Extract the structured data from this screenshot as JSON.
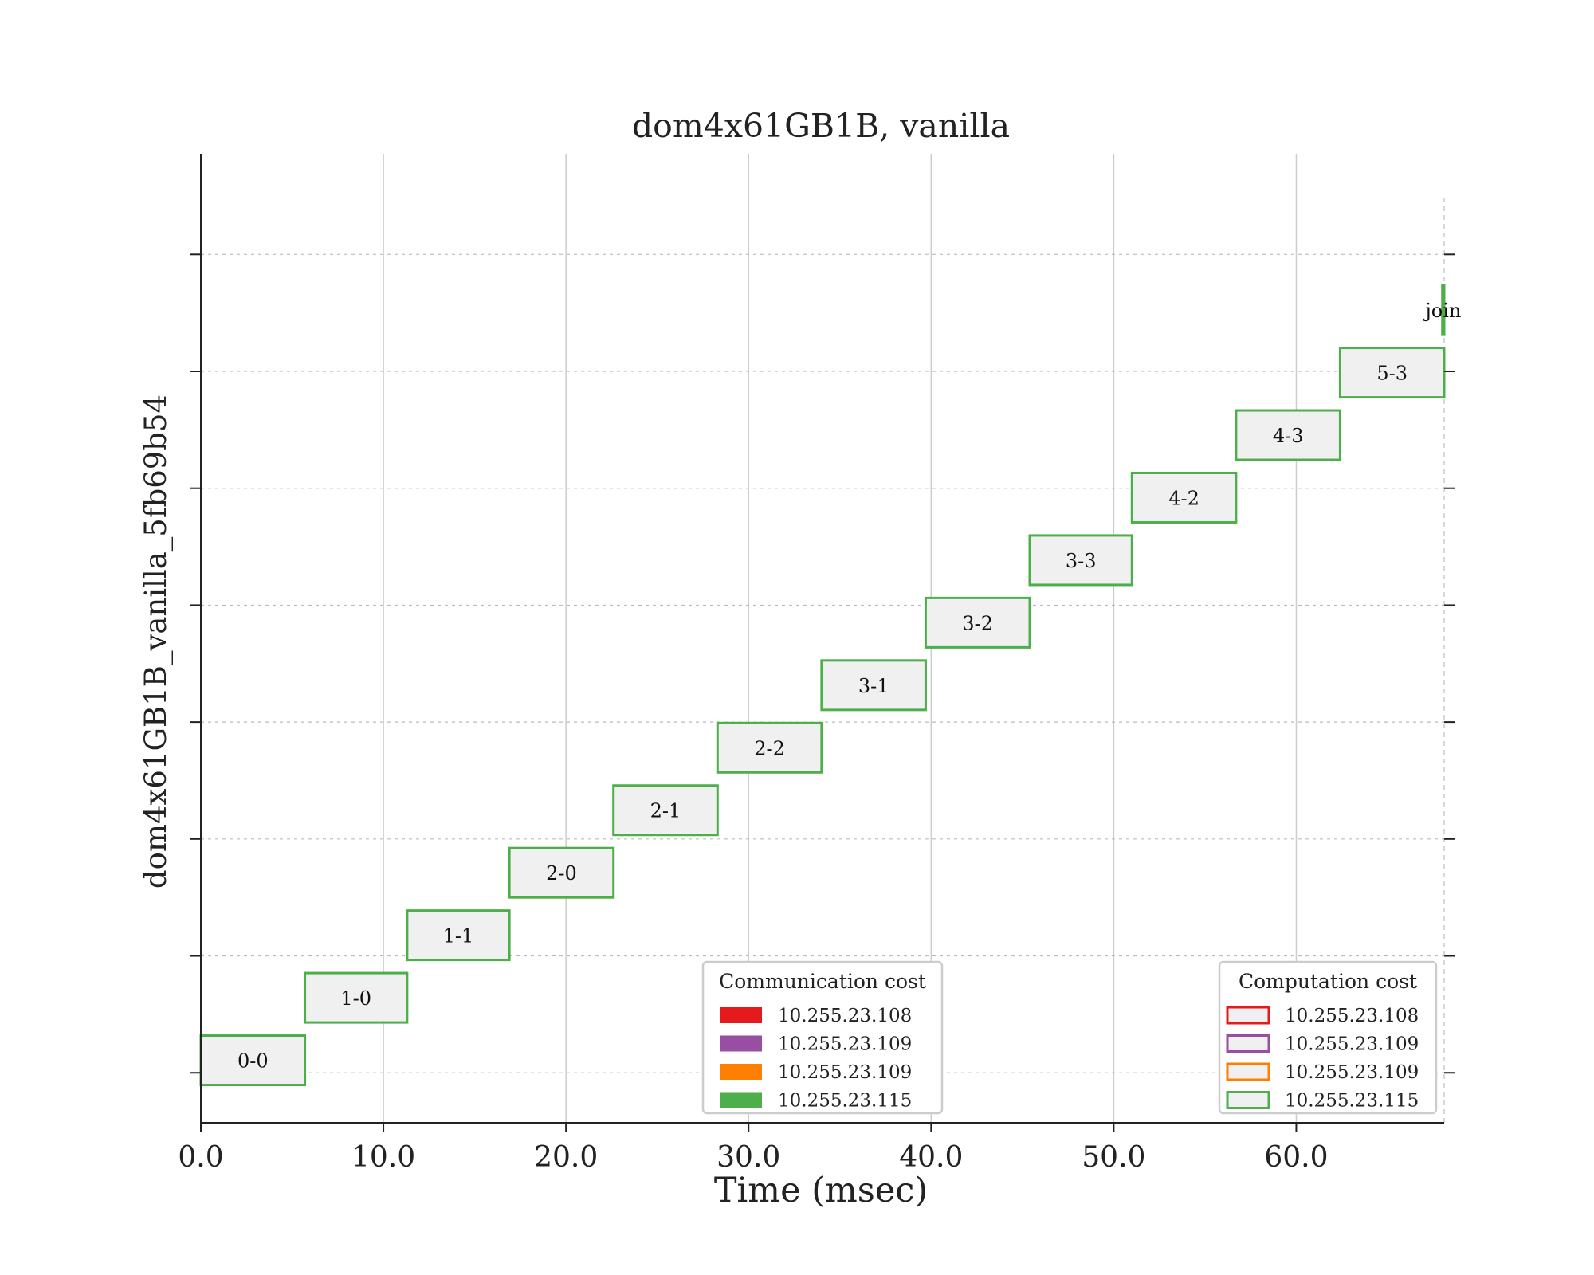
{
  "chart_data": {
    "type": "gantt",
    "title": "dom4x61GB1B, vanilla",
    "xlabel": "Time (msec)",
    "ylabel": "dom4x61GB1B_vanilla_5fb69b54",
    "xlim": [
      0,
      68.1
    ],
    "x_ticks": [
      0,
      10,
      20,
      30,
      40,
      50,
      60
    ],
    "x_tick_labels": [
      "0.0",
      "10.0",
      "20.0",
      "30.0",
      "40.0",
      "50.0",
      "60.0"
    ],
    "ylim": [
      0,
      15.5
    ],
    "grid": "vertical solid at x ticks; horizontal dashed at y ticks",
    "tasks": [
      {
        "label": "0-0",
        "start": 0.0,
        "end": 5.7,
        "level": 1,
        "host": "10.255.23.115"
      },
      {
        "label": "1-0",
        "start": 5.7,
        "end": 11.3,
        "level": 2,
        "host": "10.255.23.115"
      },
      {
        "label": "1-1",
        "start": 11.3,
        "end": 16.9,
        "level": 3,
        "host": "10.255.23.115"
      },
      {
        "label": "2-0",
        "start": 16.9,
        "end": 22.6,
        "level": 4,
        "host": "10.255.23.115"
      },
      {
        "label": "2-1",
        "start": 22.6,
        "end": 28.3,
        "level": 5,
        "host": "10.255.23.115"
      },
      {
        "label": "2-2",
        "start": 28.3,
        "end": 34.0,
        "level": 6,
        "host": "10.255.23.115"
      },
      {
        "label": "3-1",
        "start": 34.0,
        "end": 39.7,
        "level": 7,
        "host": "10.255.23.115"
      },
      {
        "label": "3-2",
        "start": 39.7,
        "end": 45.4,
        "level": 8,
        "host": "10.255.23.115"
      },
      {
        "label": "3-3",
        "start": 45.4,
        "end": 51.0,
        "level": 9,
        "host": "10.255.23.115"
      },
      {
        "label": "4-2",
        "start": 51.0,
        "end": 56.7,
        "level": 10,
        "host": "10.255.23.115"
      },
      {
        "label": "4-3",
        "start": 56.7,
        "end": 62.4,
        "level": 11,
        "host": "10.255.23.115"
      },
      {
        "label": "5-3",
        "start": 62.4,
        "end": 68.1,
        "level": 12,
        "host": "10.255.23.115"
      },
      {
        "label": "join",
        "start": 68.0,
        "end": 68.1,
        "level": 13,
        "host": "10.255.23.115"
      }
    ],
    "end_marker_x": 68.1,
    "legends": [
      {
        "title": "Communication cost",
        "style": "filled",
        "placement": "lower-center",
        "entries": [
          {
            "label": "10.255.23.108",
            "color": "#e41a1c"
          },
          {
            "label": "10.255.23.109",
            "color": "#984ea3"
          },
          {
            "label": "10.255.23.109",
            "color": "#ff7f00"
          },
          {
            "label": "10.255.23.115",
            "color": "#4daf4a"
          }
        ]
      },
      {
        "title": "Computation cost",
        "style": "outlined",
        "placement": "lower-right",
        "entries": [
          {
            "label": "10.255.23.108",
            "color": "#e41a1c"
          },
          {
            "label": "10.255.23.109",
            "color": "#984ea3"
          },
          {
            "label": "10.255.23.109",
            "color": "#ff7f00"
          },
          {
            "label": "10.255.23.115",
            "color": "#4daf4a"
          }
        ]
      }
    ],
    "colors": {
      "task_edge": "#4daf4a",
      "task_fill": "#f0f0f0",
      "axis": "#222222",
      "grid": "#cccccc",
      "dashed_grid": "#bbbbbb",
      "text": "#222222"
    }
  }
}
